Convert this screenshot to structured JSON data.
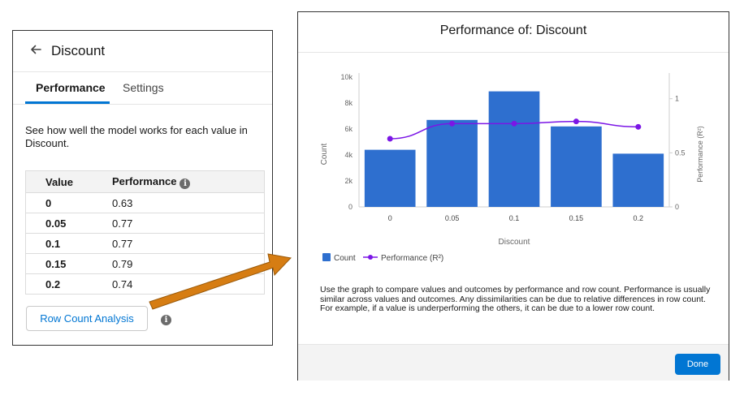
{
  "left_panel": {
    "title": "Discount",
    "tabs": [
      "Performance",
      "Settings"
    ],
    "description": "See how well the model works for each value in Discount.",
    "table": {
      "headers": [
        "Value",
        "Performance"
      ],
      "rows": [
        [
          "0",
          "0.63"
        ],
        [
          "0.05",
          "0.77"
        ],
        [
          "0.1",
          "0.77"
        ],
        [
          "0.15",
          "0.79"
        ],
        [
          "0.2",
          "0.74"
        ]
      ]
    },
    "row_count_button": "Row Count Analysis",
    "info_glyph": "i"
  },
  "modal": {
    "title": "Performance of: Discount",
    "description": "Use the graph to compare values and outcomes by performance and row count. Performance is usually similar across values and outcomes. Any dissimilarities can be due to relative differences in row count. For example, if a value is underperforming the others, it can be due to a lower row count.",
    "done_button": "Done"
  },
  "colors": {
    "bar": "#2e6fcf",
    "line": "#7b16e6",
    "accent": "#0176d3",
    "arrow": "#d67d13"
  },
  "chart_data": {
    "type": "bar",
    "categories": [
      "0",
      "0.05",
      "0.1",
      "0.15",
      "0.2"
    ],
    "series": [
      {
        "name": "Count",
        "type": "bar",
        "axis": "left",
        "values": [
          4400,
          6700,
          8900,
          6200,
          4100
        ]
      },
      {
        "name": "Performance (R²)",
        "type": "line",
        "axis": "right",
        "values": [
          0.63,
          0.77,
          0.77,
          0.79,
          0.74
        ]
      }
    ],
    "xlabel": "Discount",
    "ylabel": "Count",
    "y2label": "Performance (R²)",
    "ylim": [
      0,
      10000
    ],
    "y2lim": [
      0,
      1.2
    ],
    "yticks": [
      "0",
      "2k",
      "4k",
      "6k",
      "8k",
      "10k"
    ],
    "y2ticks": [
      "0",
      "0.5",
      "1"
    ],
    "legend_position": "bottom-left",
    "grid": false
  }
}
